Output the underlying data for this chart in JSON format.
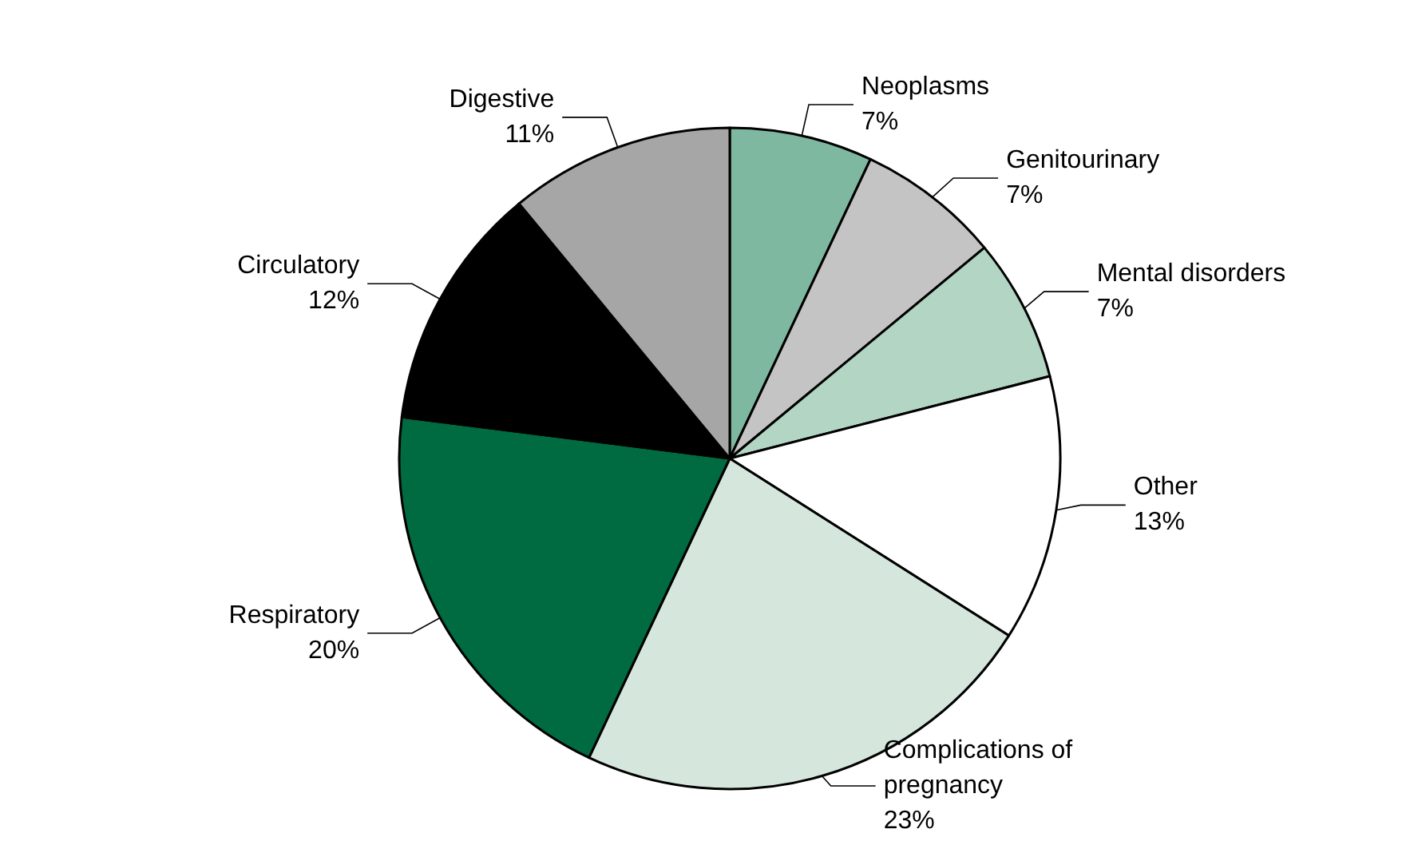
{
  "chart_data": {
    "type": "pie",
    "categories": [
      "Neoplasms",
      "Genitourinary",
      "Mental disorders",
      "Other",
      "Complications of pregnancy",
      "Respiratory",
      "Circulatory",
      "Digestive"
    ],
    "values": [
      7,
      7,
      7,
      13,
      23,
      20,
      12,
      11
    ],
    "value_labels": [
      "7%",
      "7%",
      "7%",
      "13%",
      "23%",
      "20%",
      "12%",
      "11%"
    ],
    "colors": [
      "#7fb8a0",
      "#c4c4c4",
      "#b3d6c4",
      "#ffffff",
      "#d5e7dd",
      "#006a40",
      "#000000",
      "#a6a6a6"
    ],
    "legend": false
  }
}
